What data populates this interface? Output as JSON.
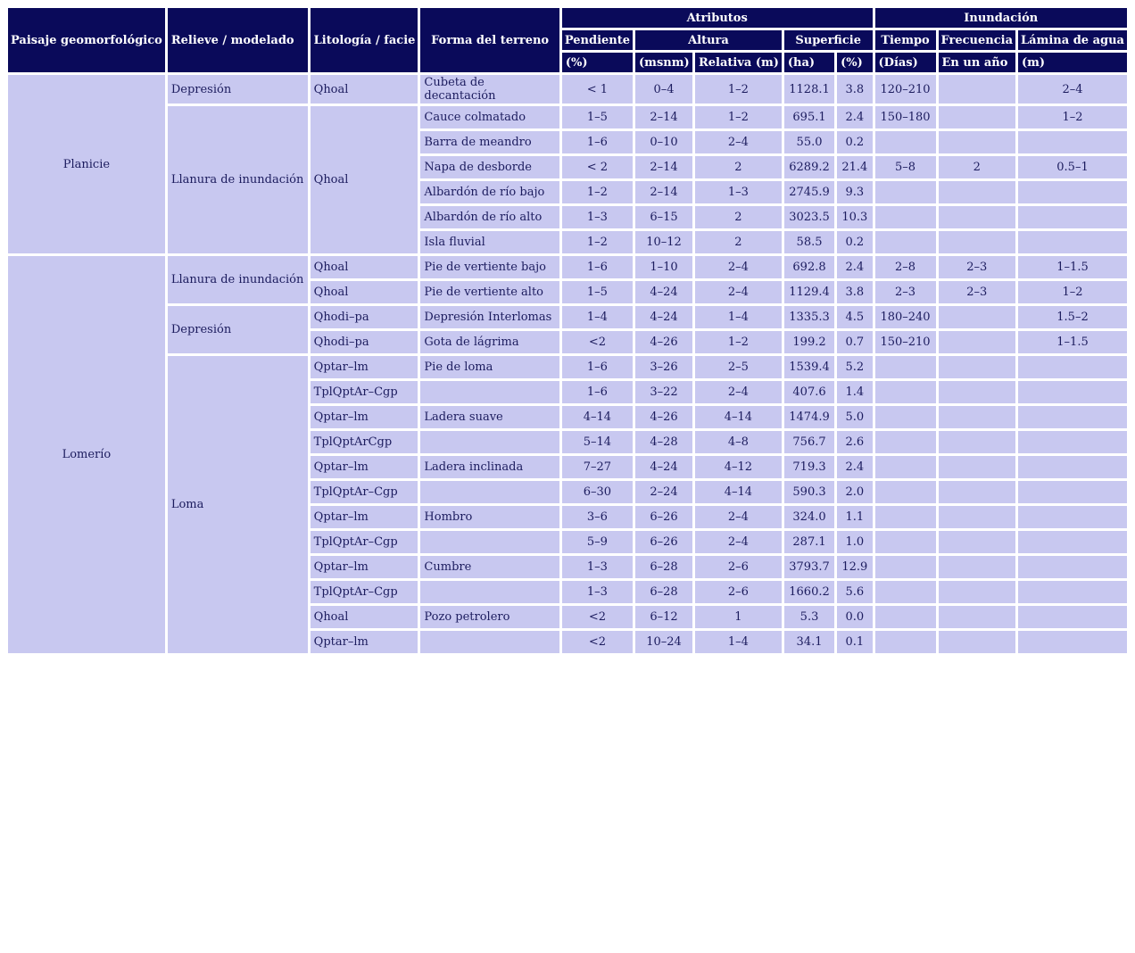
{
  "table": {
    "headers": {
      "paisaje": "Paisaje geomorfológico",
      "relieve": "Relieve / modelado",
      "litologia": "Litología / facie",
      "forma": "Forma del terreno",
      "atributos": "Atributos",
      "inundacion": "Inundación",
      "pendiente": "Pendiente",
      "altura": "Altura",
      "superficie": "Superficie",
      "tiempo": "Tiempo",
      "frecuencia": "Frecuencia",
      "lamina": "Lámina de agua"
    },
    "units": {
      "pendiente_pct": "(%)",
      "msnm": "(msnm)",
      "relativa_m": "Relativa (m)",
      "ha": "(ha)",
      "superficie_pct": "(%)",
      "dias": "(Días)",
      "frecuencia_ano": "En un año",
      "lamina_m": "(m)"
    },
    "column_names": [
      "paisaje",
      "relieve",
      "litologia",
      "forma",
      "pendiente-pct",
      "altura-msnm",
      "altura-relativa-m",
      "superficie-ha",
      "superficie-pct",
      "tiempo-dias",
      "frecuencia-en-un-ano",
      "lamina-de-agua-m"
    ],
    "rows": [
      [
        {
          "v": "Planicie",
          "rowspan": 7
        },
        "Depresión",
        "Qhoal",
        "Cubeta de decantación",
        "< 1",
        "0–4",
        "1–2",
        "1128.1",
        "3.8",
        "120–210",
        "",
        "2–4"
      ],
      [
        {
          "v": "Llanura de inundación",
          "rowspan": 6
        },
        {
          "v": "Qhoal",
          "rowspan": 6
        },
        "Cauce colmatado",
        "1–5",
        "2–14",
        "1–2",
        "695.1",
        "2.4",
        "150–180",
        "",
        "1–2"
      ],
      [
        "Barra de meandro",
        "1–6",
        "0–10",
        "2–4",
        "55.0",
        "0.2",
        "",
        "",
        ""
      ],
      [
        "Napa de desborde",
        "< 2",
        "2–14",
        "2",
        "6289.2",
        "21.4",
        "5–8",
        "2",
        "0.5–1"
      ],
      [
        "Albardón de río bajo",
        "1–2",
        "2–14",
        "1–3",
        "2745.9",
        "9.3",
        "",
        "",
        ""
      ],
      [
        "Albardón de río alto",
        "1–3",
        "6–15",
        "2",
        "3023.5",
        "10.3",
        "",
        "",
        ""
      ],
      [
        "Isla fluvial",
        "1–2",
        "10–12",
        "2",
        "58.5",
        "0.2",
        "",
        "",
        ""
      ],
      [
        {
          "v": "Lomerío",
          "rowspan": 16
        },
        {
          "v": "Llanura de inundación",
          "rowspan": 2
        },
        "Qhoal",
        "Pie de vertiente bajo",
        "1–6",
        "1–10",
        "2–4",
        "692.8",
        "2.4",
        "2–8",
        "2–3",
        "1–1.5"
      ],
      [
        "Qhoal",
        "Pie de vertiente alto",
        "1–5",
        "4–24",
        "2–4",
        "1129.4",
        "3.8",
        "2–3",
        "2–3",
        "1–2"
      ],
      [
        {
          "v": "Depresión",
          "rowspan": 2
        },
        "Qhodi–pa",
        "Depresión Interlomas",
        "1–4",
        "4–24",
        "1–4",
        "1335.3",
        "4.5",
        "180–240",
        "",
        "1.5–2"
      ],
      [
        "Qhodi–pa",
        "Gota de lágrima",
        "<2",
        "4–26",
        "1–2",
        "199.2",
        "0.7",
        "150–210",
        "",
        "1–1.5"
      ],
      [
        {
          "v": "Loma",
          "rowspan": 12
        },
        "Qptar–lm",
        "Pie de loma",
        "1–6",
        "3–26",
        "2–5",
        "1539.4",
        "5.2",
        "",
        "",
        ""
      ],
      [
        "TplQptAr–Cgp",
        "",
        "1–6",
        "3–22",
        "2–4",
        "407.6",
        "1.4",
        "",
        "",
        ""
      ],
      [
        "Qptar–lm",
        "Ladera suave",
        "4–14",
        "4–26",
        "4–14",
        "1474.9",
        "5.0",
        "",
        "",
        ""
      ],
      [
        "TplQptArCgp",
        "",
        "5–14",
        "4–28",
        "4–8",
        "756.7",
        "2.6",
        "",
        "",
        ""
      ],
      [
        "Qptar–lm",
        "Ladera inclinada",
        "7–27",
        "4–24",
        "4–12",
        "719.3",
        "2.4",
        "",
        "",
        ""
      ],
      [
        "TplQptAr–Cgp",
        "",
        "6–30",
        "2–24",
        "4–14",
        "590.3",
        "2.0",
        "",
        "",
        ""
      ],
      [
        "Qptar–lm",
        "Hombro",
        "3–6",
        "6–26",
        "2–4",
        "324.0",
        "1.1",
        "",
        "",
        ""
      ],
      [
        "TplQptAr–Cgp",
        "",
        "5–9",
        "6–26",
        "2–4",
        "287.1",
        "1.0",
        "",
        "",
        ""
      ],
      [
        "Qptar–lm",
        "Cumbre",
        "1–3",
        "6–28",
        "2–6",
        "3793.7",
        "12.9",
        "",
        "",
        ""
      ],
      [
        "TplQptAr–Cgp",
        "",
        "1–3",
        "6–28",
        "2–6",
        "1660.2",
        "5.6",
        "",
        "",
        ""
      ],
      [
        "Qhoal",
        "Pozo petrolero",
        "<2",
        "6–12",
        "1",
        "5.3",
        "0.0",
        "",
        "",
        ""
      ],
      [
        "Qptar–lm",
        "",
        "<2",
        "10–24",
        "1–4",
        "34.1",
        "0.1",
        "",
        "",
        ""
      ]
    ]
  },
  "colors": {
    "header_bg": "#0a0a5a",
    "cell_bg": "#c8c8f0",
    "header_text": "#ffffff",
    "body_text": "#1c1c5e"
  }
}
